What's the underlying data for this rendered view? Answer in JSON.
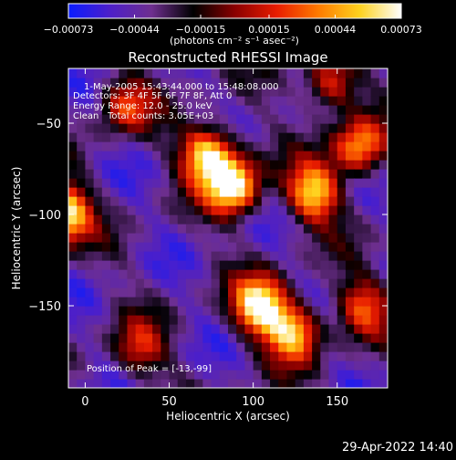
{
  "chart_data": {
    "type": "heatmap",
    "title": "Reconstructed RHESSI Image",
    "xlabel": "Heliocentric X (arcsec)",
    "ylabel": "Heliocentric Y (arcsec)",
    "xlim": [
      -10,
      180
    ],
    "ylim": [
      -195,
      -20
    ],
    "x_ticks": [
      0,
      50,
      100,
      150
    ],
    "y_ticks": [
      -50,
      -100,
      -150
    ],
    "colorbar": {
      "range": [
        -0.00073,
        0.00073
      ],
      "tick_values": [
        -0.00073,
        -0.00044,
        -0.00015,
        0.00015,
        0.00044,
        0.00073
      ],
      "tick_labels": [
        "−0.00073",
        "−0.00044",
        "−0.00015",
        "0.00015",
        "0.00044",
        "0.00073"
      ],
      "unit_label": "(photons cm⁻² s⁻¹ asec⁻²)",
      "colors": [
        "#0a1cff",
        "#4d1fc9",
        "#6e2f8f",
        "#000000",
        "#8a0000",
        "#e81c00",
        "#ff7a00",
        "#ffd21e",
        "#ffffff"
      ]
    },
    "sources": [
      {
        "x": -13,
        "y": -99,
        "peak": 1.0
      },
      {
        "x": 73,
        "y": -67,
        "peak": 0.95
      },
      {
        "x": 88,
        "y": -84,
        "peak": 1.0
      },
      {
        "x": 136,
        "y": -88,
        "peak": 0.85
      },
      {
        "x": 104,
        "y": -150,
        "peak": 1.0
      },
      {
        "x": 124,
        "y": -164,
        "peak": 0.85
      },
      {
        "x": 163,
        "y": -63,
        "peak": 0.75
      },
      {
        "x": 146,
        "y": -28,
        "peak": 0.6
      },
      {
        "x": 24,
        "y": -40,
        "peak": 0.5
      },
      {
        "x": 32,
        "y": -174,
        "peak": 0.45
      },
      {
        "x": 165,
        "y": -150,
        "peak": 0.55
      }
    ],
    "annotations": {
      "time": "1-May-2005 15:43:44.000 to 15:48:08.000",
      "detectors": "Detectors: 3F 4F 5F 6F 7F 8F, Att 0",
      "energy": "Energy Range: 12.0 - 25.0 keV",
      "clean": "Clean",
      "counts": "Total counts: 3.05E+03",
      "peak": "Position of Peak = [-13,-99]"
    }
  },
  "footer": {
    "timestamp": "29-Apr-2022 14:40"
  }
}
